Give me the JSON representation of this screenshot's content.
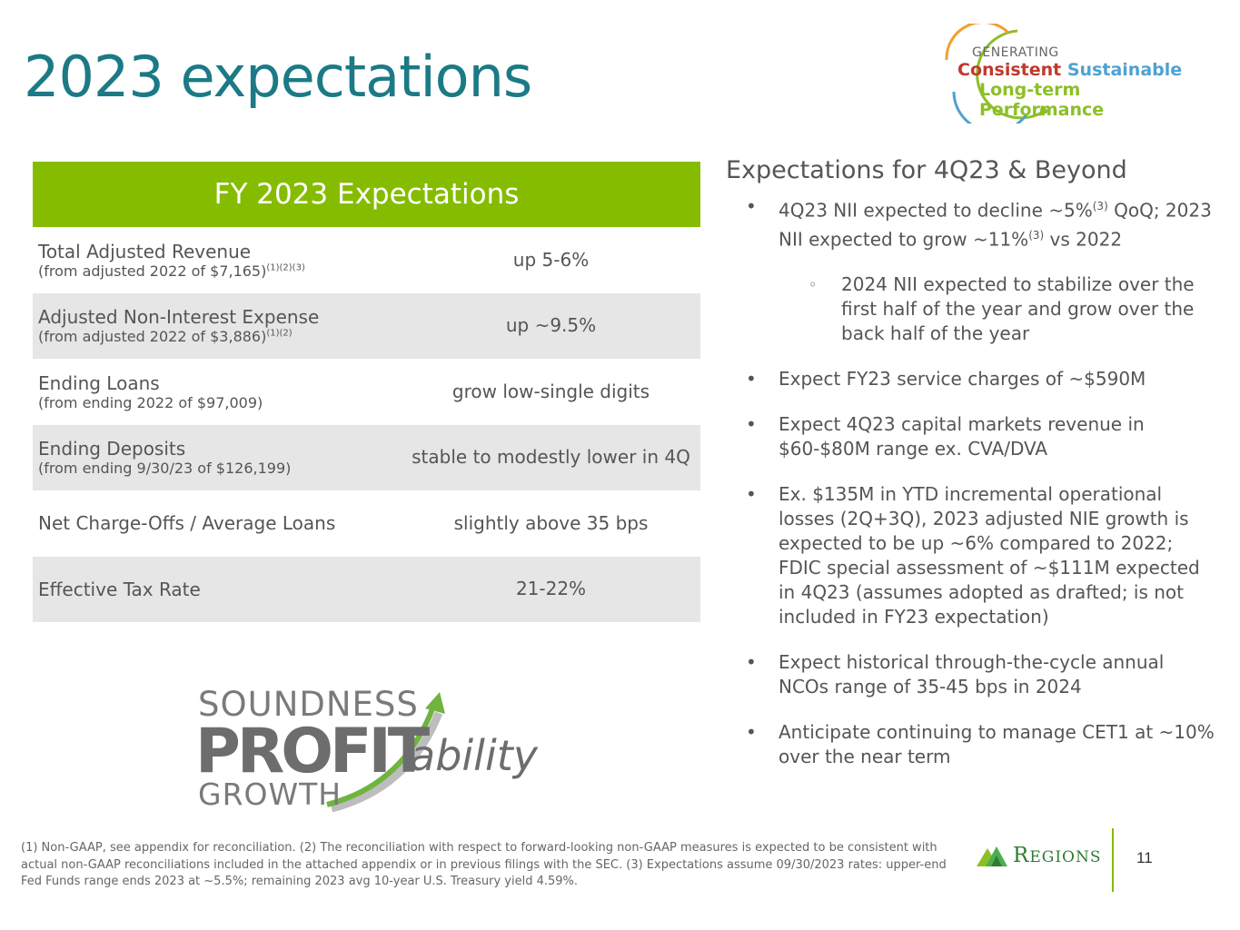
{
  "title": "2023 expectations",
  "logo_top": {
    "line1": "GENERATING",
    "consistent": "Consistent",
    "sustainable": "Sustainable",
    "line3": "Long-term Performance"
  },
  "table": {
    "header": "FY 2023 Expectations",
    "rows": [
      {
        "label": "Total Adjusted Revenue",
        "sub": "(from adjusted 2022 of $7,165)",
        "sup": "(1)(2)(3)",
        "value": "up 5-6%"
      },
      {
        "label": "Adjusted Non-Interest Expense",
        "sub": "(from adjusted 2022 of $3,886)",
        "sup": "(1)(2)",
        "value": "up ~9.5%"
      },
      {
        "label": "Ending Loans",
        "sub": "(from ending 2022 of $97,009)",
        "sup": "",
        "value": "grow low-single digits"
      },
      {
        "label": "Ending Deposits",
        "sub": "(from ending 9/30/23 of $126,199)",
        "sup": "",
        "value": "stable to modestly lower in 4Q"
      },
      {
        "label": "Net Charge-Offs / Average Loans",
        "sub": "",
        "sup": "",
        "value": "slightly above 35 bps"
      },
      {
        "label": "Effective Tax Rate",
        "sub": "",
        "sup": "",
        "value": "21-22%"
      }
    ]
  },
  "right": {
    "heading": "Expectations for 4Q23 & Beyond",
    "b1": {
      "p1": "4Q23 NII expected to decline ~5%",
      "sup1": "(3)",
      "p2": " QoQ; 2023 NII expected to grow ~11%",
      "sup2": "(3)",
      "p3": " vs 2022"
    },
    "b1_sub": "2024 NII expected to stabilize over the first half of the year and grow over the back half of the year",
    "b2": "Expect FY23 service charges of ~$590M",
    "b3": "Expect 4Q23 capital markets revenue in $60-$80M range ex. CVA/DVA",
    "b4": "Ex. $135M in YTD incremental operational losses (2Q+3Q), 2023 adjusted NIE growth is expected to be up ~6% compared to 2022; FDIC special assessment of ~$111M expected in 4Q23 (assumes adopted as drafted; is not included in FY23 expectation)",
    "b5": "Expect historical through-the-cycle annual NCOs range of 35-45 bps in 2024",
    "b6": "Anticipate continuing to manage CET1 at ~10% over the near term"
  },
  "spg": {
    "soundness": "SOUNDNESS",
    "profit": "PROFIT",
    "ability": "ability",
    "growth": "GROWTH"
  },
  "footnote": "(1) Non-GAAP, see appendix for reconciliation. (2) The reconciliation with respect to forward-looking non-GAAP measures is expected to be consistent with actual non-GAAP reconciliations included in the attached appendix or in previous filings with the SEC. (3) Expectations assume 09/30/2023 rates: upper-end Fed Funds range ends 2023 at ~5.5%; remaining 2023 avg 10-year U.S. Treasury yield 4.59%.",
  "brand": {
    "first": "R",
    "rest": "EGIONS"
  },
  "page_number": "11"
}
